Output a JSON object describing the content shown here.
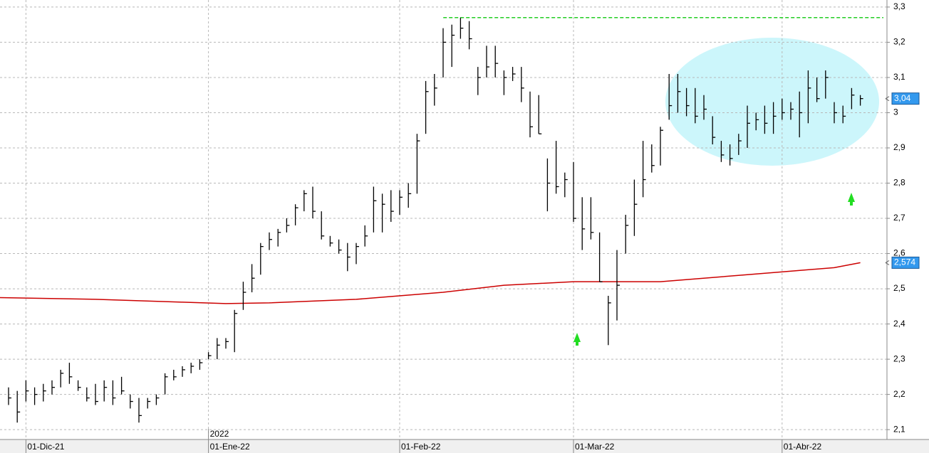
{
  "chart_data": {
    "type": "ohlc",
    "categories": [
      null,
      null,
      "01-Dic-21",
      null,
      null,
      null,
      null,
      null,
      null,
      null,
      null,
      null,
      null,
      null,
      null,
      null,
      null,
      null,
      null,
      null,
      null,
      null,
      null,
      "01-Ene-22",
      null,
      null,
      null,
      null,
      null,
      null,
      null,
      null,
      null,
      null,
      null,
      null,
      null,
      null,
      null,
      null,
      null,
      null,
      null,
      null,
      null,
      "01-Feb-22",
      null,
      null,
      null,
      null,
      null,
      null,
      null,
      null,
      null,
      null,
      null,
      null,
      null,
      null,
      null,
      null,
      null,
      null,
      null,
      "01-Mar-22",
      null,
      null,
      null,
      null,
      null,
      null,
      null,
      null,
      null,
      null,
      null,
      null,
      null,
      null,
      null,
      null,
      null,
      null,
      null,
      null,
      null,
      null,
      null,
      "01-Abr-22",
      null,
      null,
      null,
      null,
      null,
      null,
      null,
      null,
      null
    ],
    "year_label": "2022",
    "high": [
      2.22,
      2.21,
      2.24,
      2.22,
      2.23,
      2.24,
      2.27,
      2.29,
      2.24,
      2.22,
      2.23,
      2.24,
      2.24,
      2.25,
      2.2,
      2.19,
      2.19,
      2.2,
      2.26,
      2.27,
      2.28,
      2.29,
      2.3,
      2.32,
      2.36,
      2.36,
      2.44,
      2.52,
      2.57,
      2.63,
      2.66,
      2.67,
      2.7,
      2.74,
      2.78,
      2.79,
      2.72,
      2.65,
      2.64,
      2.63,
      2.63,
      2.68,
      2.79,
      2.77,
      2.78,
      2.78,
      2.8,
      2.94,
      3.09,
      3.11,
      3.24,
      3.25,
      3.27,
      3.26,
      3.13,
      3.19,
      3.19,
      3.12,
      3.13,
      3.13,
      3.06,
      3.05,
      2.87,
      2.92,
      2.83,
      2.86,
      2.76,
      2.76,
      2.66,
      2.48,
      2.61,
      2.71,
      2.81,
      2.92,
      2.91,
      2.96,
      3.11,
      3.11,
      3.07,
      3.07,
      3.05,
      2.99,
      2.92,
      2.91,
      2.94,
      3.02,
      3.0,
      3.02,
      3.03,
      3.04,
      3.03,
      3.06,
      3.12,
      3.1,
      3.12,
      3.03,
      3.02,
      3.07,
      3.05
    ],
    "low": [
      2.17,
      2.12,
      2.18,
      2.17,
      2.18,
      2.2,
      2.22,
      2.23,
      2.21,
      2.18,
      2.17,
      2.18,
      2.17,
      2.2,
      2.16,
      2.12,
      2.16,
      2.17,
      2.2,
      2.24,
      2.25,
      2.26,
      2.27,
      2.3,
      2.3,
      2.33,
      2.32,
      2.44,
      2.49,
      2.54,
      2.61,
      2.62,
      2.66,
      2.68,
      2.72,
      2.7,
      2.64,
      2.62,
      2.6,
      2.55,
      2.57,
      2.62,
      2.66,
      2.66,
      2.69,
      2.71,
      2.73,
      2.77,
      2.94,
      3.02,
      3.1,
      3.13,
      3.21,
      3.18,
      3.05,
      3.1,
      3.1,
      3.05,
      3.09,
      3.03,
      2.93,
      2.94,
      2.72,
      2.77,
      2.76,
      2.69,
      2.61,
      2.64,
      2.52,
      2.34,
      2.41,
      2.6,
      2.65,
      2.76,
      2.83,
      2.85,
      2.98,
      3.0,
      2.99,
      2.97,
      2.98,
      2.91,
      2.86,
      2.85,
      2.88,
      2.9,
      2.95,
      2.94,
      2.94,
      2.98,
      2.98,
      2.93,
      2.97,
      3.03,
      3.04,
      2.97,
      2.97,
      3.01,
      3.02
    ],
    "close": [
      2.19,
      2.15,
      2.21,
      2.2,
      2.21,
      2.22,
      2.26,
      2.25,
      2.22,
      2.19,
      2.18,
      2.22,
      2.19,
      2.21,
      2.18,
      2.14,
      2.18,
      2.19,
      2.25,
      2.25,
      2.27,
      2.28,
      2.29,
      2.31,
      2.34,
      2.35,
      2.43,
      2.49,
      2.53,
      2.62,
      2.64,
      2.66,
      2.68,
      2.73,
      2.77,
      2.72,
      2.65,
      2.63,
      2.61,
      2.59,
      2.62,
      2.65,
      2.75,
      2.74,
      2.72,
      2.76,
      2.77,
      2.92,
      3.06,
      3.07,
      3.2,
      3.22,
      3.24,
      3.21,
      3.1,
      3.13,
      3.14,
      3.1,
      3.11,
      3.07,
      2.96,
      2.94,
      2.8,
      2.79,
      2.81,
      2.7,
      2.67,
      2.66,
      2.52,
      2.46,
      2.51,
      2.68,
      2.74,
      2.81,
      2.85,
      2.95,
      3.02,
      3.06,
      3.02,
      2.99,
      3.01,
      2.93,
      2.88,
      2.87,
      2.92,
      2.97,
      2.98,
      2.97,
      2.99,
      3.0,
      3.01,
      3.0,
      3.07,
      3.04,
      3.1,
      3.0,
      2.99,
      3.05,
      3.04
    ],
    "bar_color": "#000000",
    "ma": {
      "x": [
        -1,
        10,
        20,
        25,
        30,
        40,
        50,
        57,
        65,
        70,
        75,
        85,
        95,
        98
      ],
      "values": [
        2.475,
        2.47,
        2.462,
        2.458,
        2.46,
        2.47,
        2.49,
        2.51,
        2.52,
        2.52,
        2.52,
        2.54,
        2.56,
        2.574
      ],
      "color": "#cc0000"
    },
    "resistance": {
      "x_start": 51,
      "value": 3.27,
      "color": "#22cc22"
    },
    "last_price": {
      "value": 3.04,
      "label": "3,04"
    },
    "ma_last": {
      "value": 2.574,
      "label": "2,574"
    },
    "ylim": [
      2.07,
      3.32
    ],
    "yticks": [
      {
        "value": 2.1,
        "label": "2,1"
      },
      {
        "value": 2.2,
        "label": "2,2"
      },
      {
        "value": 2.3,
        "label": "2,3"
      },
      {
        "value": 2.4,
        "label": "2,4"
      },
      {
        "value": 2.5,
        "label": "2,5"
      },
      {
        "value": 2.6,
        "label": "2,6"
      },
      {
        "value": 2.7,
        "label": "2,7"
      },
      {
        "value": 2.8,
        "label": "2,8"
      },
      {
        "value": 2.9,
        "label": "2,9"
      },
      3,
      {
        "value": 3.1,
        "label": "3,1"
      },
      {
        "value": 3.2,
        "label": "3,2"
      },
      {
        "value": 3.3,
        "label": "3,3"
      }
    ],
    "grid": true
  }
}
